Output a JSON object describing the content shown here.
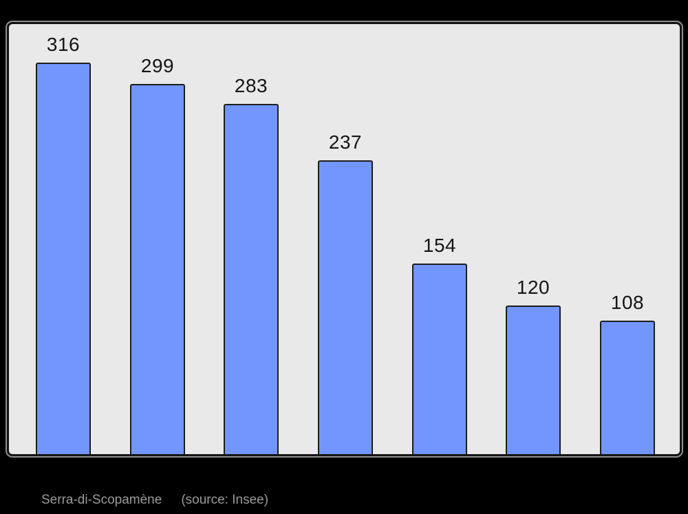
{
  "page": {
    "background_color": "#000000"
  },
  "chart_data": {
    "type": "bar",
    "title": "Serra-di-Scopamène",
    "source_note": "(source: Insee)",
    "values": [
      316,
      299,
      283,
      237,
      154,
      120,
      108
    ],
    "categories": [],
    "value_labels": [
      "316",
      "299",
      "283",
      "237",
      "154",
      "120",
      "108"
    ],
    "ylim": [
      0,
      347
    ],
    "grid": false,
    "legend": false,
    "bar_color": "#7296fb",
    "bar_border_color": "#1c1c1c",
    "plot_background": "#e9e9e9",
    "frame_border_color": "#141414",
    "frame_halo_color": "#8f8f8f",
    "value_label_color": "#141414"
  },
  "caption": {
    "title": "Serra-di-Scopamène",
    "source": "(source: Insee)",
    "color": "#9a9a9a"
  }
}
